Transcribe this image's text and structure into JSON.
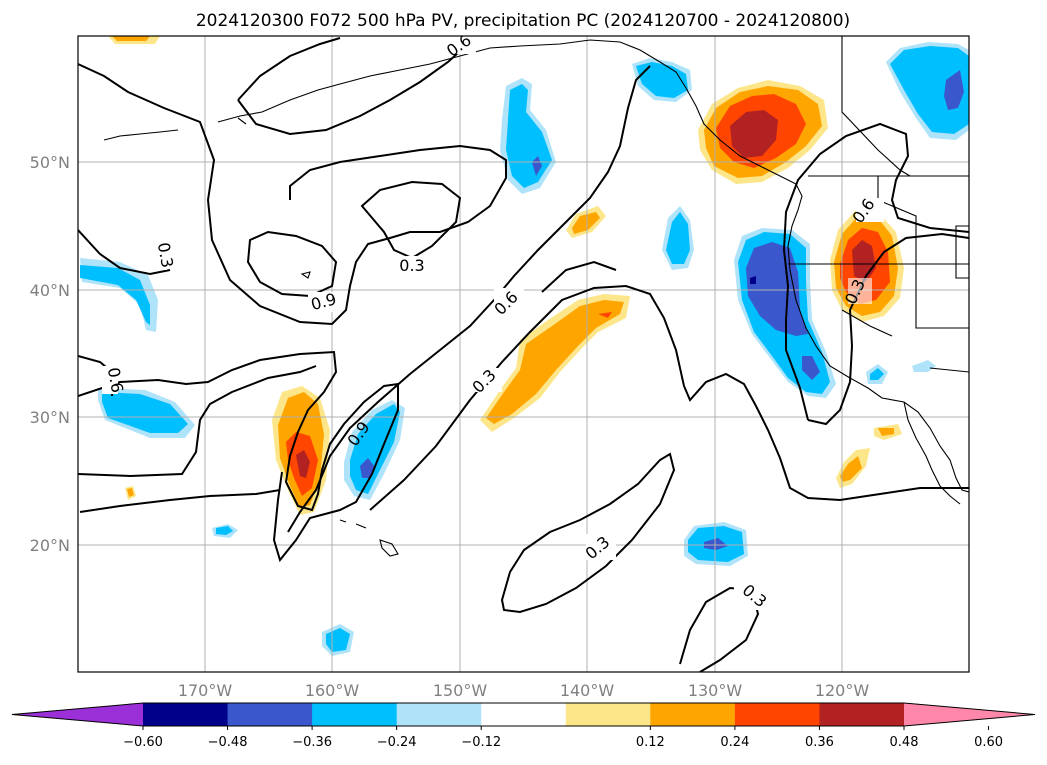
{
  "title": "2024120300 F072 500 hPa PV, precipitation PC (2024120700 - 2024120800)",
  "lat_labels": [
    "50°N",
    "40°N",
    "30°N",
    "20°N"
  ],
  "lon_labels": [
    "170°W",
    "160°W",
    "150°W",
    "140°W",
    "130°W",
    "120°W"
  ],
  "colorbar": {
    "ticks": [
      "−0.60",
      "−0.48",
      "−0.36",
      "−0.24",
      "−0.12",
      "0.12",
      "0.24",
      "0.36",
      "0.48",
      "0.60"
    ],
    "colors": [
      "#9b30d9",
      "#00008b",
      "#3a57cc",
      "#00bfff",
      "#aee3fa",
      "#ffffff",
      "#fde68a",
      "#ffa500",
      "#ff4500",
      "#b22222",
      "#ff88aa"
    ]
  },
  "contour_labels": [
    "0.3",
    "0.3",
    "0.3",
    "0.3",
    "0.3",
    "0.3",
    "0.6",
    "0.6",
    "0.6",
    "0.6",
    "0.9",
    "0.9"
  ]
}
